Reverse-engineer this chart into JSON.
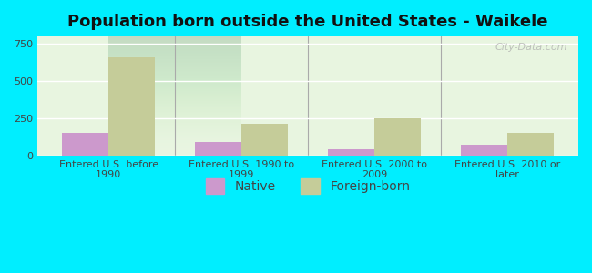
{
  "title": "Population born outside the United States - Waikele",
  "categories": [
    "Entered U.S. before\n1990",
    "Entered U.S. 1990 to\n1999",
    "Entered U.S. 2000 to\n2009",
    "Entered U.S. 2010 or\nlater"
  ],
  "native_values": [
    150,
    90,
    40,
    75
  ],
  "foreign_values": [
    660,
    215,
    248,
    155
  ],
  "native_color": "#cc99cc",
  "foreign_color": "#c5cc99",
  "background_top": "#e8f5e8",
  "background_bottom": "#f5fdf0",
  "plot_bg_top": "#e0f0e0",
  "plot_bg_bottom": "#f8fef8",
  "outer_bg": "#00eeff",
  "ylim": [
    0,
    800
  ],
  "yticks": [
    0,
    250,
    500,
    750
  ],
  "bar_width": 0.35,
  "title_fontsize": 13,
  "tick_fontsize": 8,
  "legend_fontsize": 10,
  "watermark": "City-Data.com"
}
